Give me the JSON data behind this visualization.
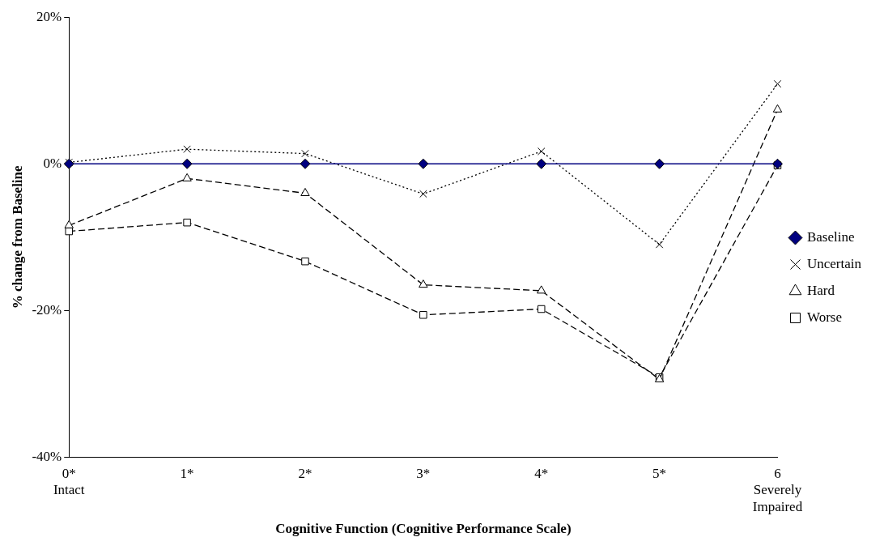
{
  "chart_data": {
    "type": "line",
    "xlabel": "Cognitive Function (Cognitive Performance Scale)",
    "ylabel": "% change from Baseline",
    "categories": [
      "0*\nIntact",
      "1*",
      "2*",
      "3*",
      "4*",
      "5*",
      "6\nSeverely\nImpaired"
    ],
    "series": [
      {
        "name": "Baseline",
        "color": "#000080",
        "values": [
          0,
          0,
          0,
          0,
          0,
          0,
          0
        ],
        "marker": "diamond",
        "line_style": "solid"
      },
      {
        "name": "Uncertain",
        "color": "#000000",
        "values": [
          0.2,
          2.0,
          1.4,
          -4.1,
          1.7,
          -11.0,
          10.9
        ],
        "marker": "cross",
        "line_style": "dotted"
      },
      {
        "name": "Hard",
        "color": "#000000",
        "values": [
          -8.4,
          -2.0,
          -4.0,
          -16.5,
          -17.3,
          -29.4,
          7.4
        ],
        "marker": "triangle",
        "line_style": "dashed"
      },
      {
        "name": "Worse",
        "color": "#000000",
        "values": [
          -9.2,
          -8.0,
          -13.3,
          -20.6,
          -19.8,
          -29.1,
          -0.2
        ],
        "marker": "square",
        "line_style": "dashed"
      }
    ],
    "ylim": [
      -40,
      20
    ],
    "yticks": [
      {
        "value": -40,
        "label": "-40%"
      },
      {
        "value": -20,
        "label": "-20%"
      },
      {
        "value": 0,
        "label": "0%"
      },
      {
        "value": 20,
        "label": "20%"
      }
    ],
    "grid": false,
    "legend": "right"
  }
}
